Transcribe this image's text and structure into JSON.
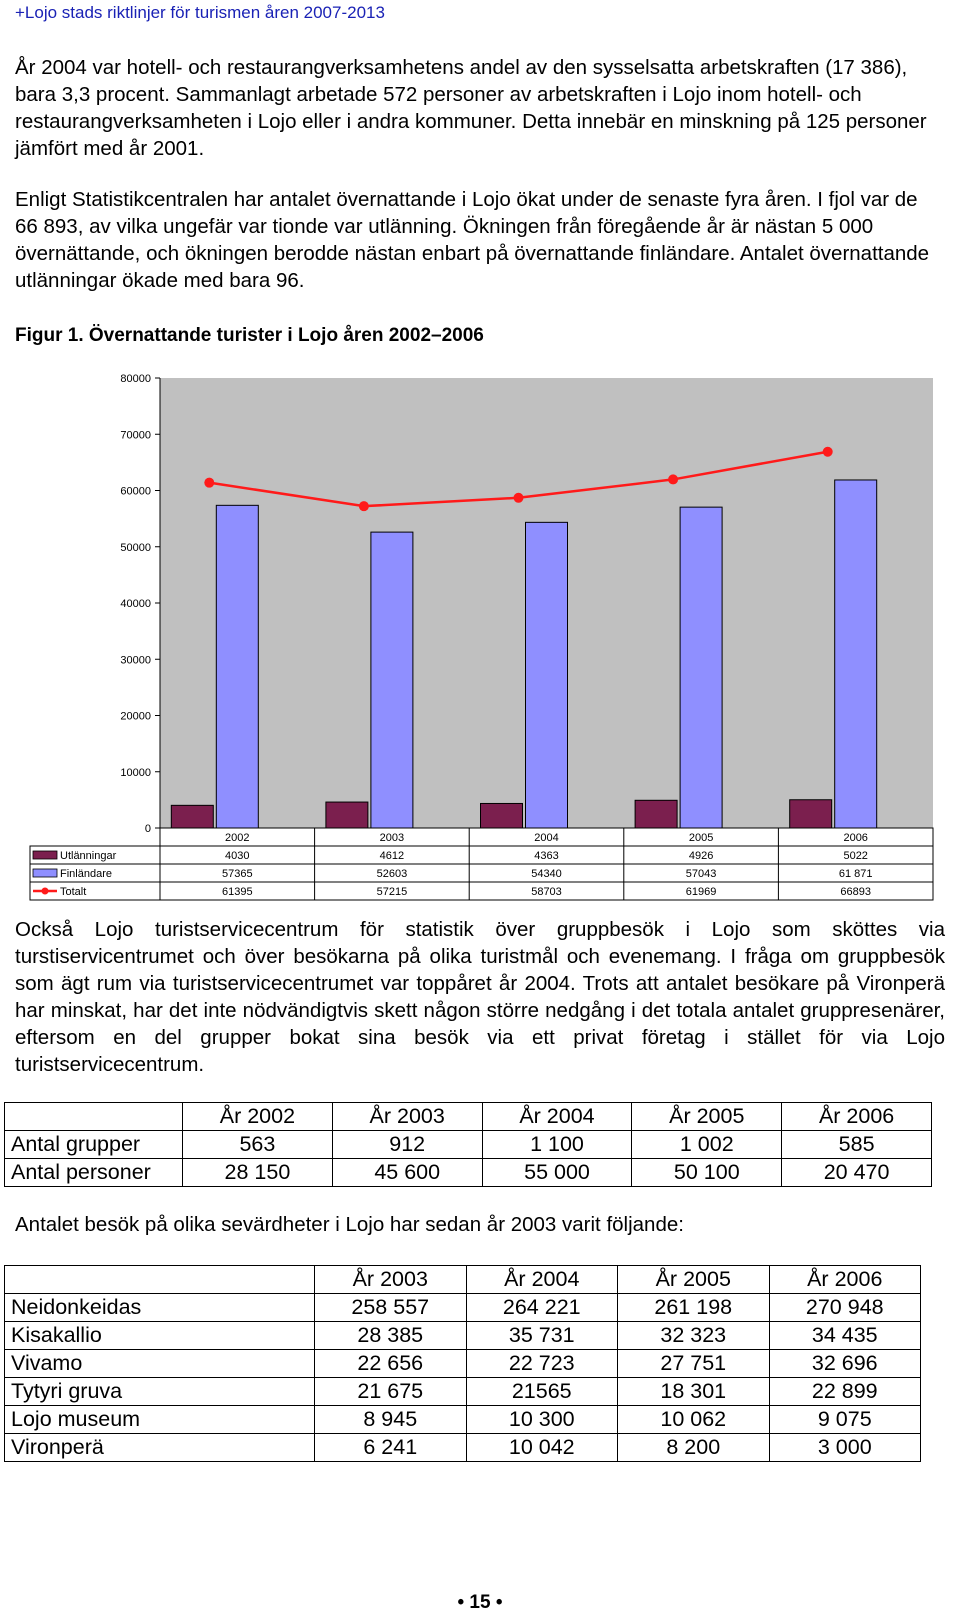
{
  "header": "+Lojo stads riktlinjer för turismen åren 2007-2013",
  "paragraphs": [
    "År 2004 var hotell- och restaurangverksamhetens andel av den sysselsatta arbetskraften (17 386), bara 3,3 procent. Sammanlagt arbetade 572 personer av arbetskraften i Lojo inom hotell- och restaurangverksamheten i Lojo eller i andra kommuner. Detta innebär en minskning på 125 personer jämfört med år 2001.",
    "Enligt Statistikcentralen har antalet övernattande i Lojo ökat under de senaste fyra åren. I fjol var de 66 893, av vilka ungefär var tionde var utlänning. Ökningen från föregående år är nästan 5 000 övernättande, och ökningen berodde nästan enbart på övernattande finländare. Antalet övernattande utlänningar ökade med bara 96.",
    "Också Lojo turistservicecentrum för statistik över gruppbesök i Lojo som sköttes via turstiservicentrumet och över besökarna på olika turistmål och evenemang. I fråga om gruppbesök som ägt rum via turistservicecentrumet var toppåret år 2004. Trots att antalet besökare på Vironperä har minskat, har det inte nödvändigtvis skett någon större nedgång i det totala antalet gruppresenärer, eftersom en del grupper bokat sina besök via  ett privat företag  i stället för via Lojo turistservicecentrum.",
    "Antalet besök på olika sevärdheter i Lojo har sedan år 2003 varit följande:"
  ],
  "figure_title": "Figur 1. Övernattande turister i Lojo åren 2002–2006",
  "chart_data": {
    "type": "bar",
    "title": "",
    "xlabel": "",
    "ylabel": "",
    "ylim": [
      0,
      80000
    ],
    "yticks": [
      "0",
      "10000",
      "20000",
      "30000",
      "40000",
      "50000",
      "60000",
      "70000",
      "80000"
    ],
    "categories": [
      "2002",
      "2003",
      "2004",
      "2005",
      "2006"
    ],
    "series": [
      {
        "name": "Utlänningar",
        "type": "bar",
        "color": "#7b1f4e",
        "values": [
          4030,
          4612,
          4363,
          4926,
          5022
        ],
        "labels": [
          "4030",
          "4612",
          "4363",
          "4926",
          "5022"
        ]
      },
      {
        "name": "Finländare",
        "type": "bar",
        "color": "#8f8fff",
        "values": [
          57365,
          52603,
          54340,
          57043,
          61871
        ],
        "labels": [
          "57365",
          "52603",
          "54340",
          "57043",
          "61 871"
        ]
      },
      {
        "name": "Totalt",
        "type": "line",
        "color": "#ff1a1a",
        "values": [
          61395,
          57215,
          58703,
          61969,
          66893
        ],
        "labels": [
          "61395",
          "57215",
          "58703",
          "61969",
          "66893"
        ]
      }
    ],
    "grid": false,
    "legend": "data-table"
  },
  "groups_table": {
    "header": [
      "",
      "År 2002",
      "År 2003",
      "År 2004",
      "År 2005",
      "År 2006"
    ],
    "rows": [
      [
        "Antal grupper",
        "563",
        "912",
        "1 100",
        "1 002",
        "585"
      ],
      [
        "Antal personer",
        "28 150",
        "45 600",
        "55 000",
        "50 100",
        "20 470"
      ]
    ]
  },
  "sights_table": {
    "header": [
      "",
      "År 2003",
      "År 2004",
      "År 2005",
      "År 2006"
    ],
    "rows": [
      [
        "Neidonkeidas",
        "258 557",
        "264 221",
        "261 198",
        "270 948"
      ],
      [
        "Kisakallio",
        "28 385",
        "35 731",
        "32 323",
        "34 435"
      ],
      [
        "Vivamo",
        "22 656",
        "22 723",
        "27 751",
        "32 696"
      ],
      [
        "Tytyri gruva",
        "21 675",
        "21565",
        "18 301",
        "22 899"
      ],
      [
        "Lojo museum",
        "8 945",
        "10 300",
        "10 062",
        "9 075"
      ],
      [
        "Vironperä",
        "6 241",
        "10 042",
        "8 200",
        "3 000"
      ]
    ]
  },
  "footer": {
    "page_number": "15",
    "bullet": "•"
  }
}
